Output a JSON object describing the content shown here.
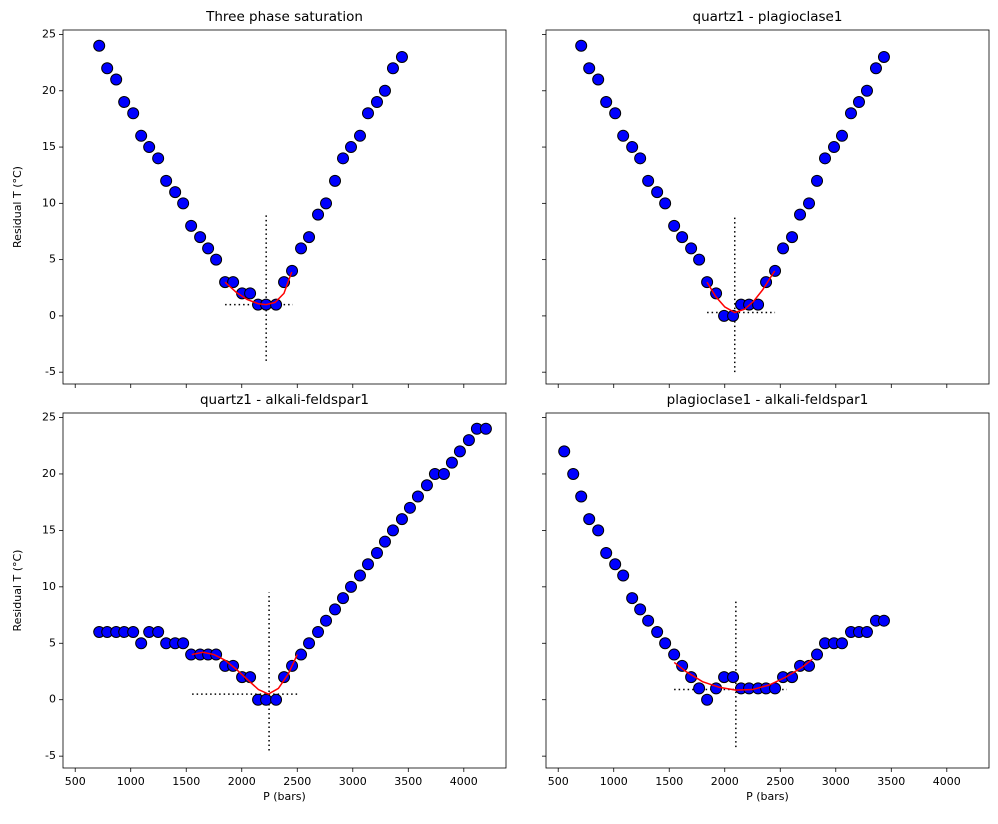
{
  "chart_data": [
    {
      "type": "scatter",
      "title": "Three phase saturation",
      "ylabel": "Residual T (°C)",
      "x": [
        716,
        788,
        869,
        941,
        1022,
        1094,
        1166,
        1247,
        1319,
        1400,
        1472,
        1544,
        1625,
        1697,
        1769,
        1850,
        1922,
        2003,
        2075,
        2147,
        2219,
        2309,
        2381,
        2453,
        2534,
        2606,
        2687,
        2759,
        2840,
        2912,
        2984,
        3065,
        3137,
        3218,
        3290,
        3362,
        3443
      ],
      "values": [
        24,
        22,
        21,
        19,
        18,
        16,
        15,
        14,
        12,
        11,
        10,
        8,
        7,
        6,
        5,
        3,
        3,
        2,
        2,
        1,
        1,
        1,
        3,
        4,
        6,
        7,
        9,
        10,
        12,
        14,
        15,
        16,
        18,
        19,
        20,
        22,
        23
      ],
      "color": "#0000ff",
      "edgecolor": "#000000",
      "fit": {
        "x": [
          1850,
          1950,
          2050,
          2150,
          2220,
          2300,
          2380,
          2450
        ],
        "values": [
          3.0,
          2.1,
          1.45,
          1.08,
          1.0,
          1.2,
          2.0,
          3.9
        ],
        "color": "#ff0000"
      },
      "guides": [
        {
          "x": [
            2220,
            2220
          ],
          "values": [
            -4,
            9
          ]
        },
        {
          "x": [
            1850,
            2460
          ],
          "values": [
            1,
            1
          ]
        }
      ],
      "guide_color": "#000000",
      "xlim": [
        390,
        4380
      ],
      "ylim": [
        -6.05,
        25.4
      ],
      "xticks": [
        500,
        1000,
        1500,
        2000,
        2500,
        3000,
        3500,
        4000
      ],
      "yticks": [
        -5,
        0,
        5,
        10,
        15,
        20,
        25
      ]
    },
    {
      "type": "scatter",
      "title": "quartz1 - plagioclase1",
      "x": [
        707,
        779,
        860,
        932,
        1013,
        1085,
        1166,
        1238,
        1310,
        1391,
        1463,
        1544,
        1616,
        1697,
        1769,
        1841,
        1922,
        1994,
        2075,
        2147,
        2219,
        2300,
        2372,
        2453,
        2525,
        2606,
        2678,
        2759,
        2831,
        2903,
        2984,
        3056,
        3137,
        3209,
        3281,
        3362,
        3434
      ],
      "values": [
        24,
        22,
        21,
        19,
        18,
        16,
        15,
        14,
        12,
        11,
        10,
        8,
        7,
        6,
        5,
        3,
        2,
        0,
        0,
        1,
        1,
        1,
        3,
        4,
        6,
        7,
        9,
        10,
        12,
        14,
        15,
        16,
        18,
        19,
        20,
        22,
        23
      ],
      "color": "#0000ff",
      "edgecolor": "#000000",
      "fit": {
        "x": [
          1840,
          1920,
          2000,
          2090,
          2180,
          2260,
          2340,
          2450
        ],
        "values": [
          3.0,
          1.7,
          0.8,
          0.3,
          0.6,
          1.3,
          2.3,
          4.0
        ],
        "color": "#ff0000"
      },
      "guides": [
        {
          "x": [
            2090,
            2090
          ],
          "values": [
            -5,
            9
          ]
        },
        {
          "x": [
            1841,
            2453
          ],
          "values": [
            0.3,
            0.3
          ]
        }
      ],
      "guide_color": "#000000",
      "xlim": [
        390,
        4380
      ],
      "ylim": [
        -6.05,
        25.4
      ],
      "xticks": [
        500,
        1000,
        1500,
        2000,
        2500,
        3000,
        3500,
        4000
      ],
      "yticks": [
        -5,
        0,
        5,
        10,
        15,
        20,
        25
      ]
    },
    {
      "type": "scatter",
      "title": "quartz1 - alkali-feldspar1",
      "xlabel": "P (bars)",
      "ylabel": "Residual T (°C)",
      "x": [
        716,
        788,
        869,
        941,
        1022,
        1094,
        1166,
        1247,
        1319,
        1400,
        1472,
        1544,
        1625,
        1697,
        1769,
        1850,
        1922,
        2003,
        2075,
        2147,
        2219,
        2309,
        2381,
        2453,
        2534,
        2606,
        2687,
        2759,
        2840,
        2912,
        2984,
        3065,
        3137,
        3218,
        3290,
        3362,
        3443,
        3515,
        3587,
        3668,
        3740,
        3821,
        3893,
        3965,
        4046,
        4118,
        4199
      ],
      "values": [
        6,
        6,
        6,
        6,
        6,
        5,
        6,
        6,
        5,
        5,
        5,
        4,
        4,
        4,
        4,
        3,
        3,
        2,
        2,
        0,
        0,
        0,
        2,
        3,
        4,
        5,
        6,
        7,
        8,
        9,
        10,
        11,
        12,
        13,
        14,
        15,
        16,
        17,
        18,
        19,
        20,
        20,
        21,
        22,
        23,
        24,
        24
      ],
      "color": "#0000ff",
      "edgecolor": "#000000",
      "fit": {
        "x": [
          1550,
          1650,
          1750,
          1850,
          1950,
          2050,
          2150,
          2240,
          2330,
          2420,
          2500
        ],
        "values": [
          4.0,
          4.2,
          4.0,
          3.5,
          2.7,
          1.8,
          0.9,
          0.5,
          1.0,
          2.3,
          4.0
        ],
        "color": "#ff0000"
      },
      "guides": [
        {
          "x": [
            2246,
            2246
          ],
          "values": [
            -4.5,
            9.5
          ]
        },
        {
          "x": [
            1553,
            2507
          ],
          "values": [
            0.5,
            0.5
          ]
        }
      ],
      "guide_color": "#000000",
      "xlim": [
        390,
        4380
      ],
      "ylim": [
        -6.05,
        25.4
      ],
      "xticks": [
        500,
        1000,
        1500,
        2000,
        2500,
        3000,
        3500,
        4000
      ],
      "yticks": [
        -5,
        0,
        5,
        10,
        15,
        20,
        25
      ]
    },
    {
      "type": "scatter",
      "title": "plagioclase1 - alkali-feldspar1",
      "xlabel": "P (bars)",
      "x": [
        554,
        635,
        707,
        779,
        860,
        932,
        1013,
        1085,
        1166,
        1238,
        1310,
        1391,
        1463,
        1544,
        1616,
        1697,
        1769,
        1841,
        1922,
        1994,
        2075,
        2147,
        2219,
        2300,
        2372,
        2453,
        2525,
        2606,
        2678,
        2759,
        2831,
        2903,
        2984,
        3056,
        3137,
        3209,
        3281,
        3362,
        3434
      ],
      "values": [
        22,
        20,
        18,
        16,
        15,
        13,
        12,
        11,
        9,
        8,
        7,
        6,
        5,
        4,
        3,
        2,
        1,
        0,
        1,
        2,
        2,
        1,
        1,
        1,
        1,
        1,
        2,
        2,
        3,
        3,
        4,
        5,
        5,
        5,
        6,
        6,
        6,
        7,
        7
      ],
      "color": "#0000ff",
      "edgecolor": "#000000",
      "fit": {
        "x": [
          1545,
          1650,
          1800,
          1950,
          2100,
          2250,
          2400,
          2550,
          2700,
          2790
        ],
        "values": [
          3.3,
          2.5,
          1.6,
          1.1,
          0.85,
          0.9,
          1.3,
          2.0,
          2.9,
          3.6
        ],
        "color": "#ff0000"
      },
      "guides": [
        {
          "x": [
            2100,
            2100
          ],
          "values": [
            -4.2,
            8.7
          ]
        },
        {
          "x": [
            1544,
            2560
          ],
          "values": [
            0.9,
            0.9
          ]
        }
      ],
      "guide_color": "#000000",
      "xlim": [
        390,
        4380
      ],
      "ylim": [
        -6.05,
        25.4
      ],
      "xticks": [
        500,
        1000,
        1500,
        2000,
        2500,
        3000,
        3500,
        4000
      ],
      "yticks": [
        -5,
        0,
        5,
        10,
        15,
        20,
        25
      ]
    }
  ]
}
